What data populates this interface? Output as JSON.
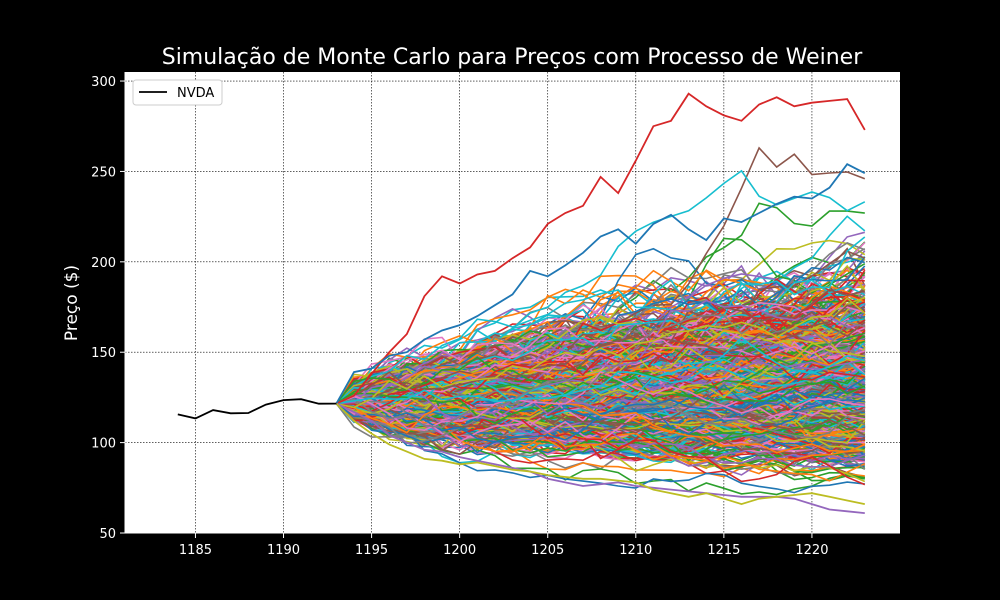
{
  "chart_data": {
    "type": "line",
    "title": "Simulação de Monte Carlo para Preços com Processo de Weiner",
    "xlabel": "",
    "ylabel": "Preço ($)",
    "xlim": [
      1181,
      1225
    ],
    "ylim": [
      50,
      305
    ],
    "xticks": [
      1185,
      1190,
      1195,
      1200,
      1205,
      1210,
      1215,
      1220
    ],
    "yticks": [
      50,
      100,
      150,
      200,
      250,
      300
    ],
    "grid": true,
    "legend": {
      "position": "top-left",
      "entries": [
        "NVDA"
      ]
    },
    "background": "#ffffff",
    "series": [
      {
        "name": "NVDA",
        "color": "#000000",
        "x": [
          1184,
          1185,
          1186,
          1187,
          1188,
          1189,
          1190,
          1191,
          1192,
          1193
        ],
        "y": [
          115.6,
          113.4,
          118.0,
          116.2,
          116.4,
          121.0,
          123.5,
          124.0,
          121.5,
          121.6
        ]
      }
    ],
    "simulation": {
      "description_hidden": false,
      "start_x": 1193,
      "end_x": 1223,
      "start_value": 121.6,
      "path_count": 1000,
      "highlighted_paths": [
        {
          "color": "#d62728",
          "x": [
            1193,
            1194,
            1195,
            1196,
            1197,
            1198,
            1199,
            1200,
            1201,
            1202,
            1203,
            1204,
            1205,
            1206,
            1207,
            1208,
            1209,
            1210,
            1211,
            1212,
            1213,
            1214,
            1215,
            1216,
            1217,
            1218,
            1219,
            1220,
            1221,
            1222,
            1223
          ],
          "y": [
            121.6,
            126,
            138,
            150,
            160,
            181,
            192,
            188,
            193,
            195,
            202,
            208,
            221,
            227,
            231,
            247,
            238,
            256,
            275,
            278,
            293,
            286,
            281,
            278,
            287,
            291,
            286,
            288,
            289,
            290,
            273
          ]
        },
        {
          "color": "#1f77b4",
          "x": [
            1193,
            1194,
            1195,
            1196,
            1197,
            1198,
            1199,
            1200,
            1201,
            1202,
            1203,
            1204,
            1205,
            1206,
            1207,
            1208,
            1209,
            1210,
            1211,
            1212,
            1213,
            1214,
            1215,
            1216,
            1217,
            1218,
            1219,
            1220,
            1221,
            1222,
            1223
          ],
          "y": [
            121.6,
            139,
            141,
            148,
            150,
            157,
            162,
            165,
            170,
            176,
            182,
            195,
            192,
            198,
            205,
            214,
            218,
            210,
            221,
            226,
            218,
            212,
            224,
            222,
            227,
            232,
            236,
            235,
            241,
            254,
            249
          ]
        },
        {
          "color": "#9467bd",
          "x": [
            1193,
            1194,
            1195,
            1196,
            1197,
            1198,
            1199,
            1200,
            1201,
            1202,
            1203,
            1204,
            1205,
            1206,
            1207,
            1208,
            1209,
            1210,
            1211,
            1212,
            1213,
            1214,
            1215,
            1216,
            1217,
            1218,
            1219,
            1220,
            1221,
            1222,
            1223
          ],
          "y": [
            121.6,
            117,
            112,
            104,
            100,
            96,
            95,
            92,
            90,
            88,
            86,
            84,
            80,
            78,
            76,
            77,
            78,
            76,
            75,
            74,
            73,
            72,
            71,
            70,
            70,
            70,
            69,
            66,
            63,
            62,
            61
          ]
        },
        {
          "color": "#bcbd22",
          "x": [
            1193,
            1194,
            1195,
            1196,
            1197,
            1198,
            1199,
            1200,
            1201,
            1202,
            1203,
            1204,
            1205,
            1206,
            1207,
            1208,
            1209,
            1210,
            1211,
            1212,
            1213,
            1214,
            1215,
            1216,
            1217,
            1218,
            1219,
            1220,
            1221,
            1222,
            1223
          ],
          "y": [
            121.6,
            112,
            105,
            99,
            95,
            91,
            90,
            88,
            89,
            87,
            85,
            84,
            82,
            81,
            80,
            80,
            79,
            78,
            74,
            72,
            70,
            72,
            69,
            66,
            69,
            70,
            71,
            72,
            70,
            68,
            66
          ]
        }
      ]
    }
  }
}
